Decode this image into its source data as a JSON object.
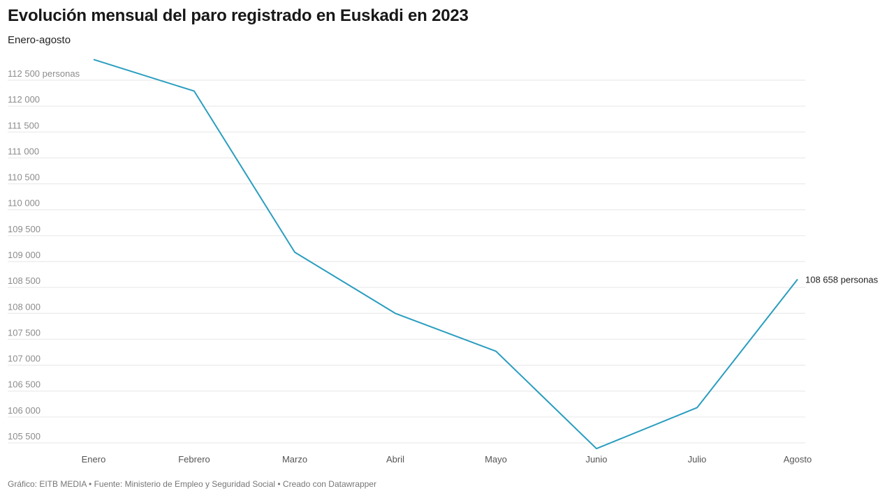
{
  "header": {
    "title": "Evolución mensual del paro registrado en Euskadi en 2023",
    "subtitle": "Enero-agosto"
  },
  "footer": {
    "credit": "Gráfico: EITB MEDIA • Fuente: Ministerio de Empleo y Seguridad Social • Creado con Datawrapper"
  },
  "colors": {
    "line": "#2a9dbf",
    "grid": "#e6e6e6"
  },
  "chart_data": {
    "type": "line",
    "title": "Evolución mensual del paro registrado en Euskadi en 2023",
    "subtitle": "Enero-agosto",
    "xlabel": "",
    "ylabel": "",
    "categories": [
      "Enero",
      "Febrero",
      "Marzo",
      "Abril",
      "Mayo",
      "Junio",
      "Julio",
      "Agosto"
    ],
    "series": [
      {
        "name": "Paro registrado",
        "values": [
          112900,
          112290,
          109180,
          108000,
          107270,
          105390,
          106180,
          108658
        ]
      }
    ],
    "yticks": [
      {
        "value": 105500,
        "label": "105 500"
      },
      {
        "value": 106000,
        "label": "106 000"
      },
      {
        "value": 106500,
        "label": "106 500"
      },
      {
        "value": 107000,
        "label": "107 000"
      },
      {
        "value": 107500,
        "label": "107 500"
      },
      {
        "value": 108000,
        "label": "108 000"
      },
      {
        "value": 108500,
        "label": "108 500"
      },
      {
        "value": 109000,
        "label": "109 000"
      },
      {
        "value": 109500,
        "label": "109 500"
      },
      {
        "value": 110000,
        "label": "110 000"
      },
      {
        "value": 110500,
        "label": "110 500"
      },
      {
        "value": 111000,
        "label": "111 000"
      },
      {
        "value": 111500,
        "label": "111 500"
      },
      {
        "value": 112000,
        "label": "112 000"
      },
      {
        "value": 112500,
        "label": "112 500 personas"
      }
    ],
    "ylim": [
      105390,
      112900
    ],
    "end_label": "108 658 personas",
    "grid": true,
    "legend": "none"
  }
}
